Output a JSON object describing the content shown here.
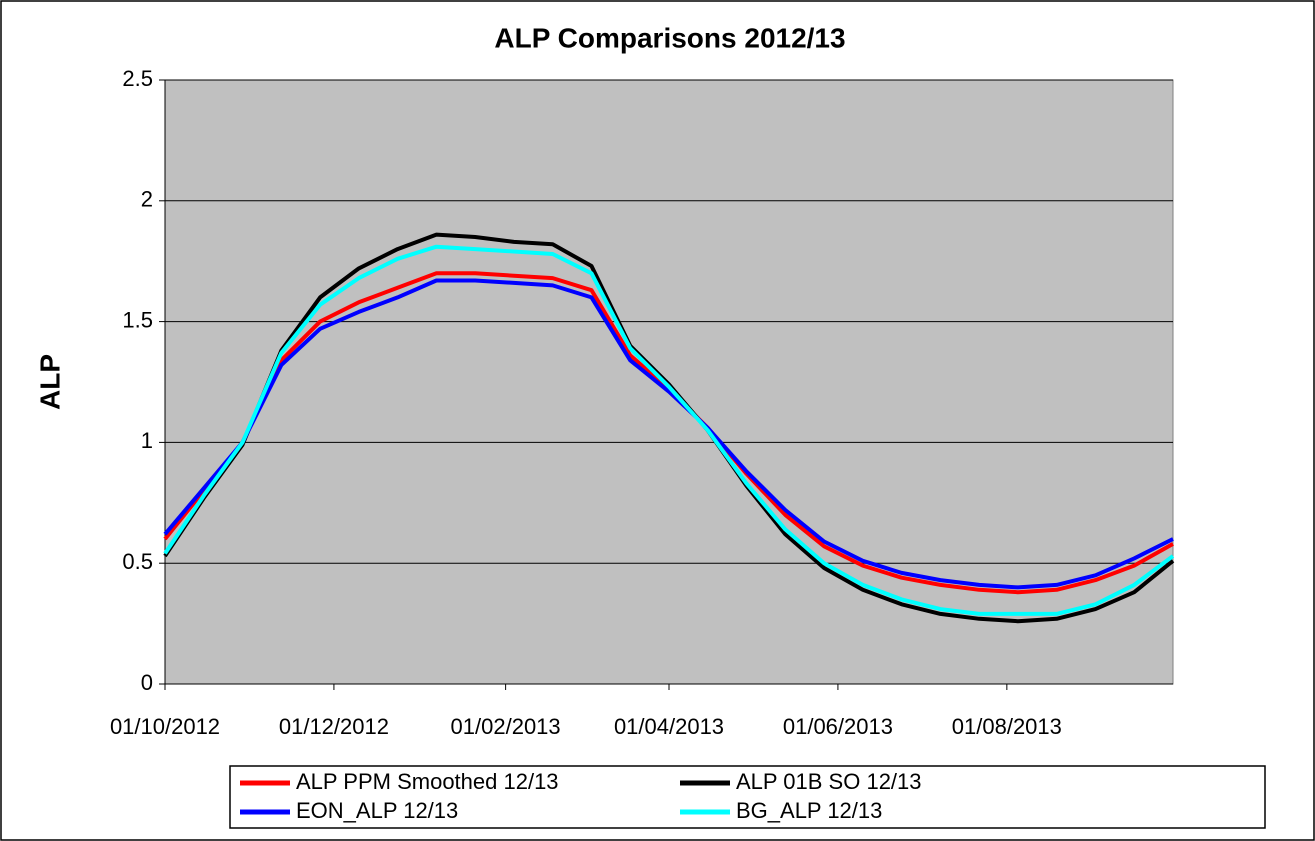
{
  "chart_data": {
    "type": "line",
    "title": "ALP Comparisons 2012/13",
    "y_label": "ALP",
    "x": [
      "01/10/2012",
      "15/10/2012",
      "29/10/2012",
      "12/11/2012",
      "26/11/2012",
      "10/12/2012",
      "24/12/2012",
      "07/01/2013",
      "21/01/2013",
      "04/02/2013",
      "18/02/2013",
      "04/03/2013",
      "18/03/2013",
      "01/04/2013",
      "15/04/2013",
      "29/04/2013",
      "13/05/2013",
      "27/05/2013",
      "10/06/2013",
      "24/06/2013",
      "08/07/2013",
      "22/07/2013",
      "05/08/2013",
      "19/08/2013",
      "02/09/2013",
      "16/09/2013",
      "30/09/2013"
    ],
    "series": [
      {
        "name": "ALP PPM Smoothed 12/13",
        "color": "#ff0000",
        "values": [
          0.6,
          0.8,
          1.0,
          1.34,
          1.5,
          1.58,
          1.64,
          1.7,
          1.7,
          1.69,
          1.68,
          1.63,
          1.36,
          1.22,
          1.06,
          0.87,
          0.7,
          0.57,
          0.49,
          0.44,
          0.41,
          0.39,
          0.38,
          0.39,
          0.43,
          0.49,
          0.58
        ]
      },
      {
        "name": "ALP 01B SO  12/13",
        "color": "#000000",
        "values": [
          0.53,
          0.77,
          0.99,
          1.38,
          1.6,
          1.72,
          1.8,
          1.86,
          1.85,
          1.83,
          1.82,
          1.73,
          1.4,
          1.24,
          1.05,
          0.82,
          0.62,
          0.48,
          0.39,
          0.33,
          0.29,
          0.27,
          0.26,
          0.27,
          0.31,
          0.38,
          0.51
        ]
      },
      {
        "name": "EON_ALP 12/13",
        "color": "#0000ff",
        "values": [
          0.62,
          0.81,
          1.0,
          1.32,
          1.47,
          1.54,
          1.6,
          1.67,
          1.67,
          1.66,
          1.65,
          1.6,
          1.34,
          1.21,
          1.06,
          0.88,
          0.72,
          0.59,
          0.51,
          0.46,
          0.43,
          0.41,
          0.4,
          0.41,
          0.45,
          0.52,
          0.6
        ]
      },
      {
        "name": "BG_ALP 12/13",
        "color": "#00ffff",
        "values": [
          0.54,
          0.78,
          1.0,
          1.37,
          1.57,
          1.68,
          1.76,
          1.81,
          1.8,
          1.79,
          1.78,
          1.7,
          1.39,
          1.23,
          1.05,
          0.83,
          0.64,
          0.5,
          0.41,
          0.35,
          0.31,
          0.29,
          0.29,
          0.29,
          0.33,
          0.41,
          0.53
        ]
      }
    ],
    "xlim": [
      "01/10/2012",
      "30/09/2013"
    ],
    "xticks": [
      "01/10/2012",
      "01/12/2012",
      "01/02/2013",
      "01/04/2013",
      "01/06/2013",
      "01/08/2013"
    ],
    "ylim": [
      0,
      2.5
    ],
    "yticks": [
      0,
      0.5,
      1,
      1.5,
      2,
      2.5
    ],
    "grid": true,
    "plot_background": "#c0c0c0",
    "legend": "bottom"
  }
}
